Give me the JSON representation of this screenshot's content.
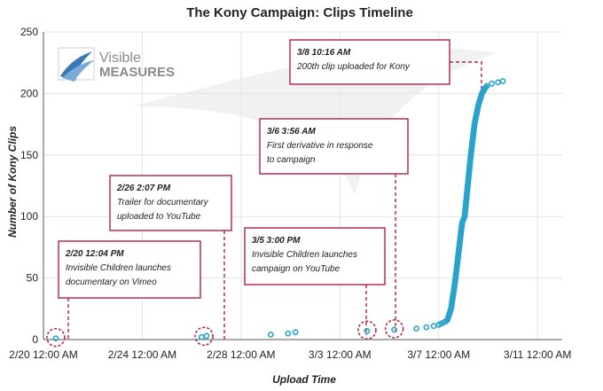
{
  "chart_data": {
    "type": "scatter",
    "title": "The Kony Campaign: Clips Timeline",
    "xlabel": "Upload Time",
    "ylabel": "Number of Kony Clips",
    "xlim": [
      0,
      21
    ],
    "ylim": [
      0,
      250
    ],
    "x_ticks": [
      {
        "x": 0,
        "label": "2/20 12:00 AM"
      },
      {
        "x": 4,
        "label": "2/24 12:00 AM"
      },
      {
        "x": 8,
        "label": "2/28 12:00 AM"
      },
      {
        "x": 12,
        "label": "3/3 12:00 AM"
      },
      {
        "x": 16,
        "label": "3/7 12:00 AM"
      },
      {
        "x": 20,
        "label": "3/11 12:00 AM"
      }
    ],
    "y_ticks": [
      0,
      50,
      100,
      150,
      200,
      250
    ],
    "grid": true,
    "marker_color": "#2aa3cc",
    "points": [
      [
        0.5,
        1
      ],
      [
        6.4,
        2
      ],
      [
        6.6,
        3
      ],
      [
        9.2,
        4
      ],
      [
        9.9,
        5
      ],
      [
        10.2,
        6
      ],
      [
        13.1,
        7
      ],
      [
        14.2,
        8
      ],
      [
        15.1,
        9
      ],
      [
        15.5,
        10
      ],
      [
        15.8,
        11
      ],
      [
        16.0,
        12
      ],
      [
        16.1,
        13
      ],
      [
        16.2,
        14
      ],
      [
        16.3,
        15
      ]
    ],
    "cumulative_series": {
      "x_start": 16.35,
      "x_points": [
        16.35,
        16.5,
        16.65,
        16.8,
        16.95,
        17.05,
        17.15,
        17.3,
        17.45,
        17.6,
        17.75,
        17.9,
        18.0
      ],
      "y_points": [
        16,
        25,
        45,
        70,
        95,
        100,
        120,
        150,
        175,
        190,
        200,
        205,
        207
      ]
    },
    "tail_points": [
      [
        18.15,
        208
      ],
      [
        18.4,
        209
      ],
      [
        18.6,
        210
      ]
    ],
    "highlights": [
      {
        "x": 0.5,
        "y": 1
      },
      {
        "x": 6.5,
        "y": 2
      },
      {
        "x": 13.1,
        "y": 7
      },
      {
        "x": 14.2,
        "y": 8
      }
    ],
    "annotations": [
      {
        "head": "2/20 12:04 PM",
        "lines": [
          "Invisible Children launches",
          "documentary on Vimeo"
        ],
        "target_x": 0.5
      },
      {
        "head": "2/26 2:07 PM",
        "lines": [
          "Trailer for documentary",
          "uploaded to YouTube"
        ],
        "target_x": 6.5
      },
      {
        "head": "3/5 3:00 PM",
        "lines": [
          "Invisible Children launches",
          "campaign on YouTube"
        ],
        "target_x": 13.1
      },
      {
        "head": "3/6 3:56 AM",
        "lines": [
          "First derivative in response",
          "to campaign"
        ],
        "target_x": 14.2
      },
      {
        "head": "3/8 10:16 AM",
        "lines": [
          "200th clip uploaded for Kony"
        ],
        "target_x": 17.8
      }
    ]
  },
  "logo": {
    "line1": "Visible",
    "line2": "MEASURES"
  }
}
